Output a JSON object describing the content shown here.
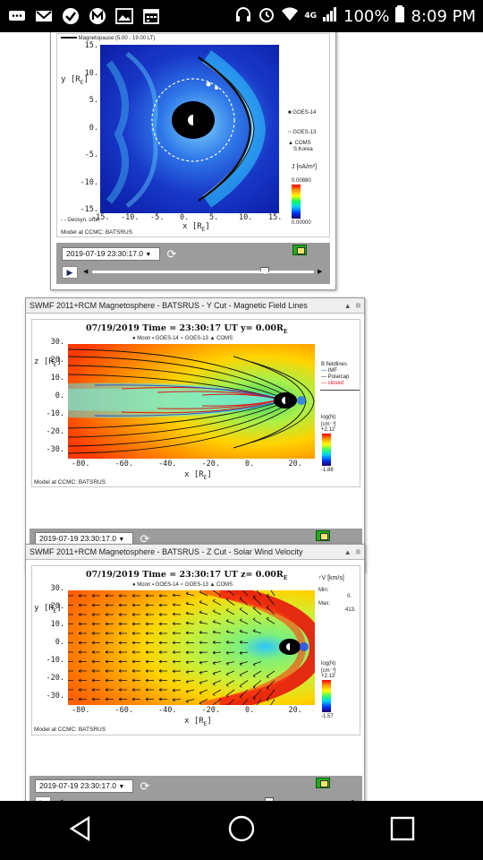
{
  "status_bar": {
    "battery": "100%",
    "time": "8:09 PM",
    "network": "4G"
  },
  "panel1": {
    "legend_magnetopause": "Magnetopause (5.00 - 19.00 LT)",
    "y_axis_label": "y [R",
    "y_axis_sub": "E",
    "x_axis_label": "x [R",
    "x_axis_sub": "E",
    "y_ticks": [
      "15.",
      "10.",
      "5.",
      "0.",
      "-5.",
      "-10.",
      "-15."
    ],
    "x_ticks": [
      "-15.",
      "-10.",
      "-5.",
      "0.",
      "5.",
      "10.",
      "15."
    ],
    "geosync_label": "Geosyn. orbit",
    "legend_goes14": "GOES-14",
    "legend_goes13": "GOES-13",
    "legend_coms": "COMS",
    "legend_coms_sub": "S.Korea",
    "cbar_label": "J",
    "cbar_units": "[nA/m²]",
    "cbar_max": "0.00880",
    "cbar_min": "0.00000",
    "credit": "Model at CCMC: BATSRUS",
    "time_select": "2019-07-19 23:30:17.0",
    "slider_position": 0.78
  },
  "panel2": {
    "title": "SWMF 2011+RCM Magnetosphere - BATSRUS - Y Cut - Magnetic Field Lines",
    "plot_title": "07/19/2019 Time = 23:30:17 UT y= 0.00R",
    "plot_title_sub": "E",
    "markers": "● Moon     ▪ GOES-14   ∘ GOES-13   ▲ COMS",
    "y_axis_label": "z [R",
    "y_axis_sub": "E",
    "x_axis_label": "x [R",
    "x_axis_sub": "E",
    "y_ticks": [
      "30.",
      "20.",
      "10.",
      "0.",
      "-10.",
      "-20.",
      "-30."
    ],
    "x_ticks": [
      "-80.",
      "-60.",
      "-40.",
      "-20.",
      "0.",
      "20."
    ],
    "fieldlines_title": "B fieldlines",
    "fieldlines": [
      "IMF",
      "Polarcap",
      "closed"
    ],
    "cbar_label": "log(N)",
    "cbar_units": "[cm⁻³]",
    "cbar_max": "+2.12",
    "cbar_min": "-1.88",
    "credit": "Model at CCMC: BATSRUS",
    "time_select": "2019-07-19 23:30:17.0",
    "slider_position": 0.72
  },
  "panel3": {
    "title": "SWMF 2011+RCM Magnetosphere - BATSRUS - Z Cut - Solar Wind Velocity",
    "plot_title": "07/19/2019 Time = 23:30:17 UT z= 0.00R",
    "plot_title_sub": "E",
    "markers": "● Moon     ▪ GOES-14   ∘ GOES-13   ▲ COMS",
    "y_axis_label": "y [R",
    "y_axis_sub": "E",
    "x_axis_label": "x [R",
    "x_axis_sub": "E",
    "y_ticks": [
      "30.",
      "20.",
      "10.",
      "0.",
      "-10.",
      "-20.",
      "-30."
    ],
    "x_ticks": [
      "-80.",
      "-60.",
      "-40.",
      "-20.",
      "0.",
      "20."
    ],
    "vel_label": "↑V [km/s]",
    "vel_min_label": "Min:",
    "vel_min": "0.",
    "vel_max_label": "Max:",
    "vel_max": "413.",
    "cbar_label": "log(N)",
    "cbar_units": "[cm⁻³]",
    "cbar_max": "+2.13",
    "cbar_min": "-1.57",
    "credit": "Model at CCMC: BATSRUS",
    "time_select": "2019-07-19 23:30:17.0",
    "slider_position": 0.72
  },
  "colors": {
    "status_bg": "#000000",
    "control_bar": "#9c9c9c",
    "field_red": "#e01818",
    "field_blue": "#1a4be0"
  }
}
